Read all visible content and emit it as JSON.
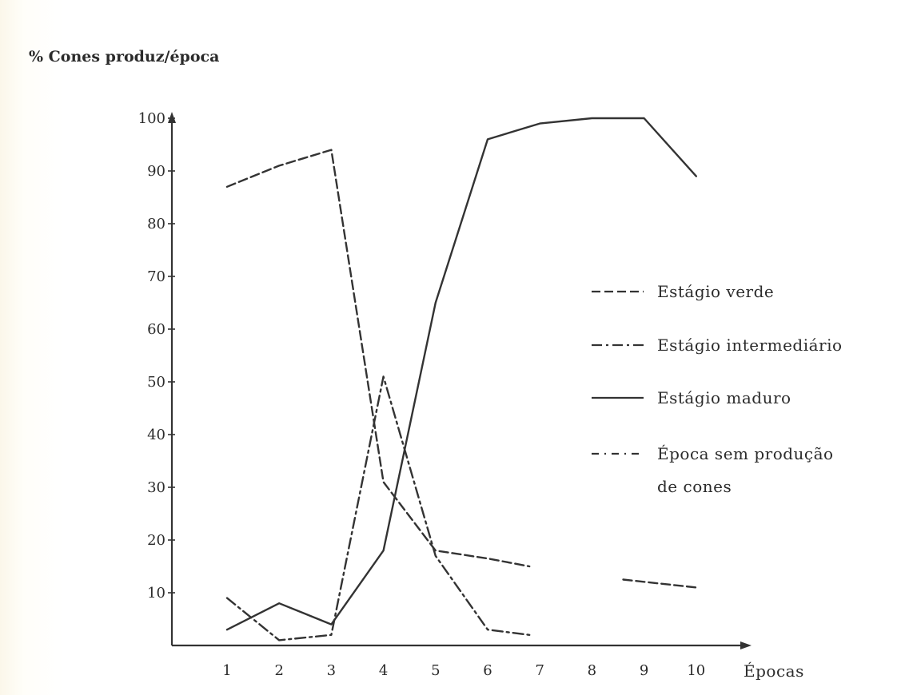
{
  "chart_data": {
    "type": "line",
    "title": "% Cones produz/época",
    "xlabel": "Épocas",
    "ylabel": "",
    "x": [
      1,
      2,
      3,
      4,
      5,
      6,
      7,
      8,
      9,
      10
    ],
    "x_tick_labels": [
      "1",
      "2",
      "3",
      "4",
      "5",
      "6",
      "7",
      "8",
      "9",
      "10"
    ],
    "ylim": [
      0,
      100
    ],
    "y_ticks": [
      10,
      20,
      30,
      40,
      50,
      60,
      70,
      80,
      90,
      100
    ],
    "y_tick_labels": [
      "10",
      "20",
      "30",
      "40",
      "50",
      "60",
      "70",
      "80",
      "90",
      "100"
    ],
    "grid": false,
    "legend_position": "right",
    "series": [
      {
        "name": "Estágio verde",
        "style": "dashed",
        "color": "#333333",
        "points": [
          [
            1,
            87
          ],
          [
            2,
            91
          ],
          [
            3,
            94
          ],
          [
            4,
            31
          ],
          [
            5,
            18
          ],
          [
            6,
            16.5
          ],
          [
            6.8,
            15
          ],
          [
            8.6,
            12.5
          ],
          [
            10,
            11
          ]
        ]
      },
      {
        "name": "Estágio intermediário",
        "style": "dashdot",
        "color": "#333333",
        "points": [
          [
            1,
            9
          ],
          [
            2,
            1
          ],
          [
            3,
            2
          ],
          [
            4,
            51
          ],
          [
            5,
            17
          ],
          [
            6,
            3
          ],
          [
            6.8,
            2
          ]
        ]
      },
      {
        "name": "Estágio maduro",
        "style": "solid",
        "color": "#333333",
        "points": [
          [
            1,
            3
          ],
          [
            2,
            8
          ],
          [
            3,
            4
          ],
          [
            4,
            18
          ],
          [
            5,
            65
          ],
          [
            6,
            96
          ],
          [
            7,
            99
          ],
          [
            8,
            100
          ],
          [
            9,
            100
          ],
          [
            10,
            89
          ]
        ]
      },
      {
        "name": "Época sem produção\nde cones",
        "name_lines": [
          "Época sem produção",
          "de cones"
        ],
        "style": "dashdot-sparse",
        "color": "#333333",
        "points": []
      }
    ]
  }
}
